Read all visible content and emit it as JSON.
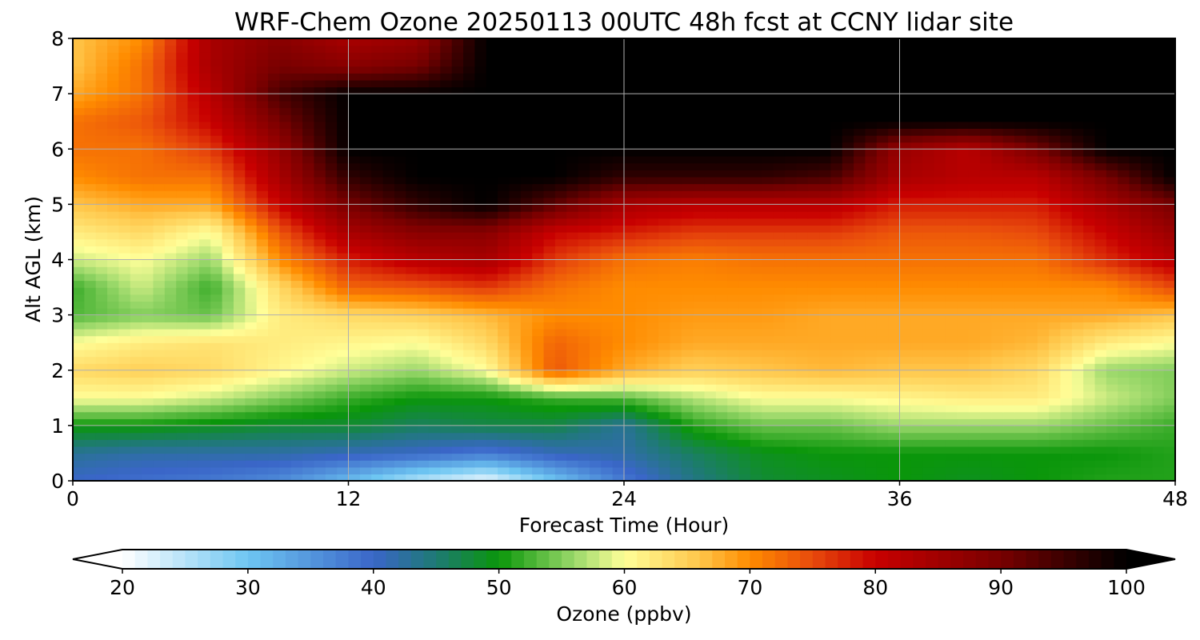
{
  "chart_data": {
    "type": "heatmap",
    "title": "WRF-Chem Ozone  20250113 00UTC 48h fcst at CCNY lidar site",
    "xlabel": "Forecast Time (Hour)",
    "ylabel": "Alt AGL (km)",
    "xlim": [
      0,
      48
    ],
    "ylim": [
      0,
      8
    ],
    "x_ticks": [
      0,
      12,
      24,
      36,
      48
    ],
    "y_ticks": [
      0,
      1,
      2,
      3,
      4,
      5,
      6,
      7,
      8
    ],
    "grid": true,
    "x_hours": [
      0,
      3,
      6,
      9,
      12,
      15,
      18,
      21,
      24,
      27,
      30,
      33,
      36,
      39,
      42,
      45,
      48
    ],
    "alt_km": [
      0,
      0.5,
      1,
      1.5,
      2,
      2.5,
      3,
      3.5,
      4,
      4.5,
      5,
      5.5,
      6,
      6.5,
      7,
      7.5,
      8
    ],
    "ozone_ppbv": [
      [
        40,
        39,
        38,
        36,
        31,
        25,
        21,
        30,
        38,
        44,
        48,
        49,
        50,
        49,
        50,
        51,
        51
      ],
      [
        43,
        42,
        42,
        42,
        41,
        40,
        38,
        41,
        42,
        46,
        49,
        50,
        50,
        50,
        50,
        50,
        51
      ],
      [
        50,
        50,
        49,
        48,
        48,
        46,
        47,
        47,
        43,
        51,
        54,
        54,
        56,
        56,
        56,
        54,
        52
      ],
      [
        60,
        60,
        58,
        55,
        52,
        50,
        50,
        52,
        53,
        57,
        60,
        60,
        61,
        62,
        62,
        58,
        55
      ],
      [
        64,
        65,
        64,
        61,
        58,
        56,
        60,
        74,
        68,
        65,
        66,
        67,
        66,
        66,
        64,
        56,
        55
      ],
      [
        60,
        62,
        63,
        62,
        61,
        60,
        64,
        73,
        70,
        68,
        68,
        68,
        68,
        68,
        67,
        62,
        60
      ],
      [
        53,
        55,
        54,
        62,
        64,
        65,
        67,
        70,
        70,
        69,
        69,
        68,
        68,
        68,
        68,
        68,
        66
      ],
      [
        52,
        58,
        52,
        64,
        73,
        74,
        76,
        72,
        70,
        70,
        70,
        70,
        70,
        70,
        70,
        70,
        75
      ],
      [
        58,
        60,
        56,
        70,
        78,
        82,
        84,
        76,
        72,
        71,
        72,
        72,
        72,
        72,
        72,
        77,
        82
      ],
      [
        62,
        64,
        60,
        74,
        84,
        88,
        88,
        80,
        78,
        76,
        76,
        76,
        74,
        74,
        75,
        80,
        86
      ],
      [
        66,
        68,
        68,
        80,
        90,
        96,
        100,
        92,
        84,
        82,
        82,
        82,
        78,
        78,
        78,
        84,
        90
      ],
      [
        70,
        72,
        72,
        84,
        96,
        100,
        100,
        100,
        96,
        96,
        96,
        94,
        84,
        82,
        82,
        90,
        100
      ],
      [
        72,
        72,
        76,
        86,
        100,
        100,
        100,
        100,
        100,
        100,
        100,
        100,
        86,
        82,
        90,
        100,
        100
      ],
      [
        72,
        74,
        80,
        90,
        100,
        100,
        100,
        100,
        100,
        100,
        100,
        100,
        100,
        100,
        100,
        100,
        100
      ],
      [
        68,
        72,
        82,
        94,
        100,
        100,
        100,
        100,
        100,
        100,
        100,
        100,
        100,
        100,
        100,
        100,
        100
      ],
      [
        66,
        72,
        84,
        90,
        88,
        90,
        100,
        100,
        100,
        100,
        100,
        100,
        100,
        100,
        100,
        100,
        100
      ],
      [
        66,
        70,
        84,
        88,
        84,
        86,
        100,
        100,
        100,
        100,
        100,
        100,
        100,
        100,
        100,
        100,
        100
      ]
    ],
    "colorbar": {
      "label": "Ozone  (ppbv)",
      "range": [
        20,
        100
      ],
      "ticks": [
        20,
        30,
        40,
        50,
        60,
        70,
        80,
        90,
        100
      ],
      "extend": "both",
      "orientation": "horizontal",
      "placement": "bottom"
    },
    "color_stops": [
      {
        "v": 20,
        "c": "#ffffff"
      },
      {
        "v": 30,
        "c": "#6ec6f2"
      },
      {
        "v": 40,
        "c": "#3a66c8"
      },
      {
        "v": 45,
        "c": "#1e7a74"
      },
      {
        "v": 50,
        "c": "#0a960a"
      },
      {
        "v": 56,
        "c": "#9ad86a"
      },
      {
        "v": 60,
        "c": "#ffff99"
      },
      {
        "v": 66,
        "c": "#ffc64a"
      },
      {
        "v": 70,
        "c": "#ff8c00"
      },
      {
        "v": 75,
        "c": "#e84a0c"
      },
      {
        "v": 80,
        "c": "#c80000"
      },
      {
        "v": 90,
        "c": "#780000"
      },
      {
        "v": 100,
        "c": "#000000"
      }
    ]
  }
}
